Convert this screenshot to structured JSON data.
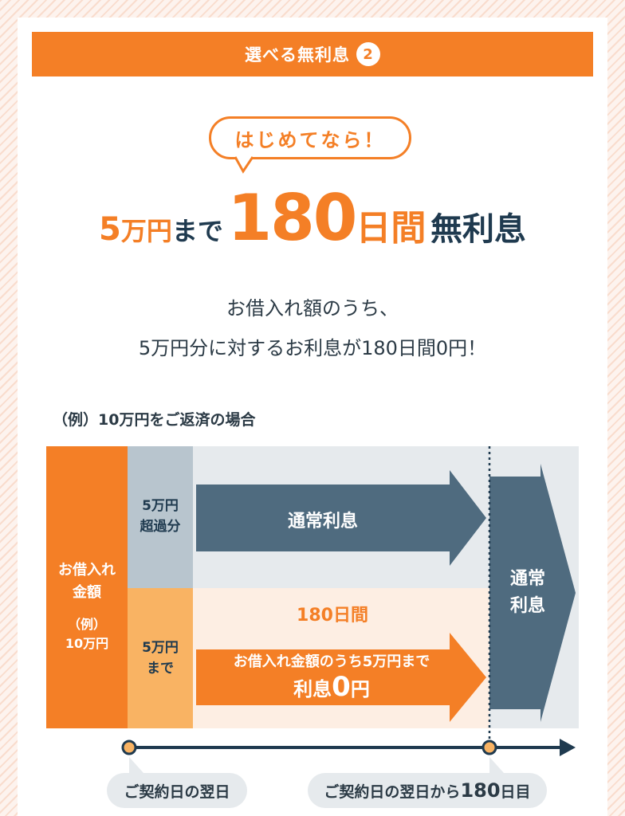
{
  "header": {
    "title": "選べる無利息",
    "number": "2"
  },
  "bubble": {
    "text": "はじめてなら！"
  },
  "headline": {
    "amount": "5",
    "amount_unit": "万円",
    "made": "まで",
    "days": "180",
    "days_unit": "日間",
    "suffix": "無利息"
  },
  "description": {
    "line1": "お借入れ額のうち、",
    "line2": "5万円分に対するお利息が180日間0円！"
  },
  "example": {
    "title": "（例）10万円をご返済の場合",
    "loan_label_line1": "お借入れ",
    "loan_label_line2": "金額",
    "loan_example_line1": "（例）",
    "loan_example_line2": "10万円",
    "excess_line1": "5万円",
    "excess_line2": "超過分",
    "upto_line1": "5万円",
    "upto_line2": "まで",
    "normal_interest": "通常利息",
    "period_label": "180日間",
    "free_line1": "お借入れ金額のうち5万円まで",
    "free_line2_prefix": "利息",
    "free_line2_zero": "0",
    "free_line2_suffix": "円",
    "right_line1": "通常",
    "right_line2": "利息",
    "start_label": "ご契約日の翌日",
    "end_label_prefix": "ご契約日の翌日から",
    "end_label_num": "180",
    "end_label_suffix": "日目"
  },
  "colors": {
    "orange": "#f47f26",
    "light_orange": "#f9b363",
    "navy": "#1f3a4f",
    "slate": "#4f6b7f",
    "gray_blue": "#b8c5ce",
    "pale": "#e6eaed",
    "cream": "#fdeee3"
  }
}
